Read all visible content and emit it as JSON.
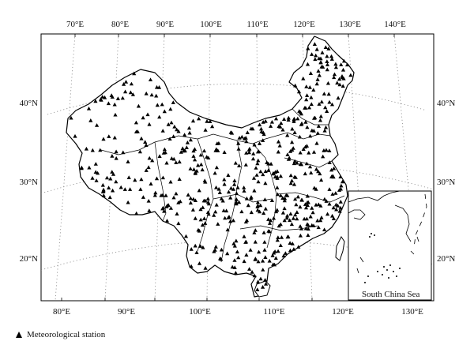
{
  "map": {
    "top_lon_labels": [
      "70°E",
      "80°E",
      "90°E",
      "100°E",
      "110°E",
      "120°E",
      "130°E",
      "140°E"
    ],
    "bottom_lon_labels": [
      "80°E",
      "90°E",
      "100°E",
      "110°E",
      "120°E",
      "130°E"
    ],
    "lat_labels": [
      "40°N",
      "30°N",
      "20°N"
    ],
    "inset_label": "South China Sea",
    "legend_label": "Meteorological station",
    "marker_symbol": "triangle",
    "marker_color": "#000000",
    "border_color": "#000000",
    "graticule_style": "dotted"
  }
}
